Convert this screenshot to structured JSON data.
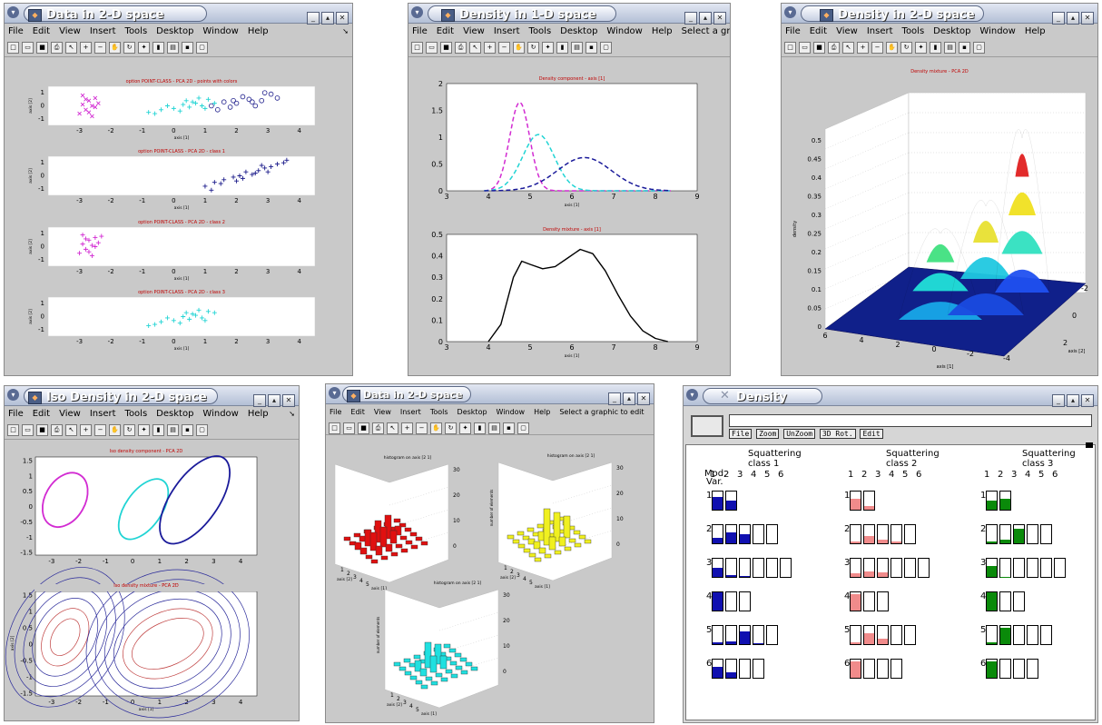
{
  "windows": [
    {
      "id": "w1",
      "title": "Data in 2-D space",
      "menus": [
        "File",
        "Edit",
        "View",
        "Insert",
        "Tools",
        "Desktop",
        "Window",
        "Help"
      ]
    },
    {
      "id": "w2",
      "title": "Density in 1-D space",
      "menus": [
        "File",
        "Edit",
        "View",
        "Insert",
        "Tools",
        "Desktop",
        "Window",
        "Help"
      ],
      "hint": "Select a graphic to ed"
    },
    {
      "id": "w3",
      "title": "Density in 2-D space",
      "menus": [
        "File",
        "Edit",
        "View",
        "Insert",
        "Tools",
        "Desktop",
        "Window",
        "Help"
      ]
    },
    {
      "id": "w4",
      "title": "Iso Density in 2-D space",
      "menus": [
        "File",
        "Edit",
        "View",
        "Insert",
        "Tools",
        "Desktop",
        "Window",
        "Help"
      ]
    },
    {
      "id": "w5",
      "title": "Data in 2-D space",
      "menus": [
        "File",
        "Edit",
        "View",
        "Insert",
        "Tools",
        "Desktop",
        "Window",
        "Help"
      ],
      "hint": "Select a graphic to edit"
    },
    {
      "id": "w6",
      "title": "Density",
      "buttons": [
        "File",
        "Zoom",
        "UnZoom",
        "3D Rot.",
        "Edit"
      ]
    }
  ],
  "w1": {
    "panels": [
      {
        "title": "option POINT-CLASS - PCA 2D - points with colors",
        "xlabel": "axis [1]",
        "ylabel": "axis [2]"
      },
      {
        "title": "option POINT-CLASS - PCA 2D - class 1",
        "xlabel": "axis [1]",
        "ylabel": "axis [2]"
      },
      {
        "title": "option POINT-CLASS - PCA 2D - class 2",
        "xlabel": "axis [1]",
        "ylabel": "axis [2]"
      },
      {
        "title": "option POINT-CLASS - PCA 2D - class 3",
        "xlabel": "axis [1]",
        "ylabel": "axis [2]"
      }
    ],
    "xticks": [
      "-3",
      "-2",
      "-1",
      "0",
      "1",
      "2",
      "3",
      "4"
    ],
    "yticks": [
      "1",
      "0",
      "-1"
    ]
  },
  "w2": {
    "top": {
      "title": "Density component - axis [1]",
      "xlabel": "axis [1]",
      "yticks": [
        "2",
        "1.5",
        "1",
        "0.5",
        "0"
      ]
    },
    "bottom": {
      "title": "Density mixture - axis [1]",
      "xlabel": "axis [1]",
      "yticks": [
        "0.5",
        "0.4",
        "0.3",
        "0.2",
        "0.1",
        "0"
      ]
    },
    "xticks": [
      "3",
      "4",
      "5",
      "6",
      "7",
      "8",
      "9"
    ]
  },
  "w3": {
    "title": "Density mixture - PCA 2D",
    "zlabel": "density",
    "xlabel": "axis [1]",
    "ylabel": "axis [2]",
    "zticks": [
      "0.5",
      "0.45",
      "0.4",
      "0.35",
      "0.3",
      "0.25",
      "0.2",
      "0.15",
      "0.1",
      "0.05",
      "0"
    ],
    "xticks": [
      "6",
      "4",
      "2",
      "0",
      "-2",
      "-4"
    ],
    "yticks": [
      "-2",
      "0",
      "2"
    ]
  },
  "w4": {
    "top": {
      "title": "Iso density component - PCA 2D",
      "yticks": [
        "1.5",
        "1",
        "0.5",
        "0",
        "-0.5",
        "-1",
        "-1.5"
      ]
    },
    "bottom": {
      "title": "Iso density mixture - PCA 2D",
      "xlabel": "axis [1]",
      "ylabel": "axis [2]",
      "yticks": [
        "1.5",
        "1",
        "0.5",
        "0",
        "-0.5",
        "-1",
        "-1.5"
      ]
    },
    "xticks": [
      "-3",
      "-2",
      "-1",
      "0",
      "1",
      "2",
      "3",
      "4"
    ]
  },
  "w5": {
    "h1": {
      "title": "histogram on axis [2 1]",
      "zticks": [
        "30",
        "20",
        "10",
        "0"
      ]
    },
    "h2": {
      "title": "histogram on axis [2 1]",
      "zlabel": "number of elements",
      "zticks": [
        "30",
        "20",
        "10",
        "0"
      ]
    },
    "h3": {
      "title": "histogram on axis [2 1]",
      "zlabel": "number of elements",
      "zticks": [
        "30",
        "20",
        "10",
        "0"
      ]
    },
    "xlab": "axis [1]",
    "ylab": "axis [2]",
    "ticks": [
      "1",
      "2",
      "3",
      "4",
      "5",
      "6"
    ]
  },
  "w6": {
    "rowhdr": "Mod.",
    "rowhdr2": "Var.",
    "groups": [
      {
        "label": "Squattering",
        "label2": "class 1",
        "color": "#1010b0"
      },
      {
        "label": "Squattering",
        "label2": "class 2",
        "color": "#f08b8b"
      },
      {
        "label": "Squattering",
        "label2": "class 3",
        "color": "#0a8a0a"
      }
    ],
    "cols": [
      "1",
      "2",
      "3",
      "4",
      "5",
      "6"
    ],
    "rows": [
      "1",
      "2",
      "3",
      "4",
      "5",
      "6"
    ]
  },
  "chart_data": [
    {
      "type": "scatter",
      "title": "option POINT-CLASS - PCA 2D - points with colors",
      "xlabel": "axis [1]",
      "ylabel": "axis [2]",
      "xlim": [
        -4,
        4.5
      ],
      "ylim": [
        -1.5,
        1.5
      ],
      "series": [
        {
          "marker": "x",
          "color": "#d22bd2",
          "points": [
            [
              -2.9,
              0.8
            ],
            [
              -2.7,
              0.4
            ],
            [
              -2.6,
              0.0
            ],
            [
              -2.8,
              -0.3
            ],
            [
              -2.5,
              0.6
            ],
            [
              -3.0,
              -0.6
            ],
            [
              -2.6,
              -0.8
            ],
            [
              -2.4,
              0.2
            ],
            [
              -2.9,
              0.1
            ],
            [
              -2.7,
              -0.5
            ],
            [
              -2.5,
              -0.1
            ],
            [
              -2.8,
              0.5
            ]
          ]
        },
        {
          "marker": "+",
          "color": "#21d4d4",
          "points": [
            [
              -0.8,
              -0.5
            ],
            [
              -0.4,
              -0.3
            ],
            [
              0.0,
              -0.2
            ],
            [
              0.3,
              0.1
            ],
            [
              0.6,
              0.3
            ],
            [
              0.9,
              0.0
            ],
            [
              0.2,
              -0.4
            ],
            [
              -0.2,
              0.0
            ],
            [
              1.1,
              0.5
            ],
            [
              0.5,
              -0.1
            ],
            [
              0.8,
              0.6
            ],
            [
              1.3,
              0.2
            ],
            [
              -0.6,
              -0.6
            ],
            [
              0.4,
              0.4
            ],
            [
              1.0,
              -0.2
            ],
            [
              0.7,
              0.2
            ]
          ]
        },
        {
          "marker": "o",
          "color": "#1a1a8a",
          "points": [
            [
              1.2,
              0.0
            ],
            [
              1.6,
              0.3
            ],
            [
              2.0,
              0.2
            ],
            [
              2.4,
              0.5
            ],
            [
              2.8,
              0.4
            ],
            [
              3.1,
              0.9
            ],
            [
              1.8,
              -0.1
            ],
            [
              2.2,
              0.7
            ],
            [
              2.6,
              0.0
            ],
            [
              3.3,
              0.6
            ],
            [
              1.4,
              -0.3
            ],
            [
              2.9,
              1.0
            ],
            [
              1.9,
              0.4
            ],
            [
              2.5,
              0.3
            ]
          ]
        }
      ]
    },
    {
      "type": "scatter",
      "title": "option POINT-CLASS - PCA 2D - class 1",
      "xlabel": "axis [1]",
      "ylabel": "axis [2]",
      "xlim": [
        -4,
        4.5
      ],
      "ylim": [
        -1.5,
        1.5
      ],
      "series": [
        {
          "marker": "+",
          "color": "#1a1a8a",
          "points": [
            [
              1.0,
              -0.8
            ],
            [
              1.3,
              -0.5
            ],
            [
              1.6,
              -0.3
            ],
            [
              1.9,
              -0.1
            ],
            [
              2.1,
              0.0
            ],
            [
              2.3,
              0.3
            ],
            [
              2.5,
              0.1
            ],
            [
              2.7,
              0.4
            ],
            [
              2.9,
              0.6
            ],
            [
              3.1,
              0.7
            ],
            [
              3.3,
              0.9
            ],
            [
              3.5,
              1.0
            ],
            [
              2.0,
              -0.4
            ],
            [
              2.6,
              0.2
            ],
            [
              1.5,
              -0.6
            ],
            [
              3.0,
              0.3
            ],
            [
              2.2,
              -0.2
            ],
            [
              2.8,
              0.8
            ],
            [
              1.2,
              -1.1
            ],
            [
              3.6,
              1.2
            ]
          ]
        }
      ]
    },
    {
      "type": "scatter",
      "title": "option POINT-CLASS - PCA 2D - class 2",
      "xlabel": "axis [1]",
      "ylabel": "axis [2]",
      "xlim": [
        -4,
        4.5
      ],
      "ylim": [
        -1.5,
        1.5
      ],
      "series": [
        {
          "marker": "+",
          "color": "#d22bd2",
          "points": [
            [
              -2.9,
              0.9
            ],
            [
              -2.7,
              0.5
            ],
            [
              -2.6,
              0.1
            ],
            [
              -2.8,
              -0.2
            ],
            [
              -2.5,
              0.7
            ],
            [
              -3.0,
              -0.5
            ],
            [
              -2.6,
              -0.7
            ],
            [
              -2.4,
              0.3
            ],
            [
              -2.9,
              0.2
            ],
            [
              -2.7,
              -0.4
            ],
            [
              -2.5,
              0.0
            ],
            [
              -2.8,
              0.6
            ],
            [
              -2.3,
              0.8
            ]
          ]
        }
      ]
    },
    {
      "type": "scatter",
      "title": "option POINT-CLASS - PCA 2D - class 3",
      "xlabel": "axis [1]",
      "ylabel": "axis [2]",
      "xlim": [
        -4,
        4.5
      ],
      "ylim": [
        -1.5,
        1.5
      ],
      "series": [
        {
          "marker": "+",
          "color": "#21d4d4",
          "points": [
            [
              -0.8,
              -0.7
            ],
            [
              -0.4,
              -0.4
            ],
            [
              0.0,
              -0.3
            ],
            [
              0.3,
              0.0
            ],
            [
              0.6,
              0.2
            ],
            [
              0.9,
              -0.1
            ],
            [
              0.2,
              -0.5
            ],
            [
              -0.2,
              -0.1
            ],
            [
              1.1,
              0.4
            ],
            [
              0.5,
              -0.2
            ],
            [
              0.8,
              0.5
            ],
            [
              1.3,
              0.3
            ],
            [
              -0.6,
              -0.6
            ],
            [
              0.4,
              0.3
            ],
            [
              1.0,
              -0.3
            ],
            [
              0.7,
              0.1
            ]
          ]
        }
      ]
    },
    {
      "type": "line",
      "title": "Density component - axis [1]",
      "xlabel": "axis [1]",
      "xlim": [
        3,
        9
      ],
      "ylim": [
        0,
        2
      ],
      "series": [
        {
          "color": "#d22bd2",
          "dash": true,
          "mean": 4.75,
          "sd": 0.24,
          "peak": 1.65
        },
        {
          "color": "#21d4d4",
          "dash": true,
          "mean": 5.2,
          "sd": 0.38,
          "peak": 1.05
        },
        {
          "color": "#1a1a9a",
          "dash": true,
          "mean": 6.3,
          "sd": 0.65,
          "peak": 0.62
        }
      ]
    },
    {
      "type": "line",
      "title": "Density mixture - axis [1]",
      "xlabel": "axis [1]",
      "xlim": [
        3,
        9
      ],
      "ylim": [
        0,
        0.5
      ],
      "series": [
        {
          "color": "#000000",
          "x": [
            4.0,
            4.3,
            4.6,
            4.8,
            5.0,
            5.3,
            5.6,
            5.9,
            6.2,
            6.5,
            6.8,
            7.1,
            7.4,
            7.7,
            8.0,
            8.3
          ],
          "y": [
            0,
            0.08,
            0.3,
            0.375,
            0.36,
            0.34,
            0.35,
            0.39,
            0.43,
            0.41,
            0.33,
            0.22,
            0.12,
            0.05,
            0.015,
            0
          ]
        }
      ]
    }
  ]
}
